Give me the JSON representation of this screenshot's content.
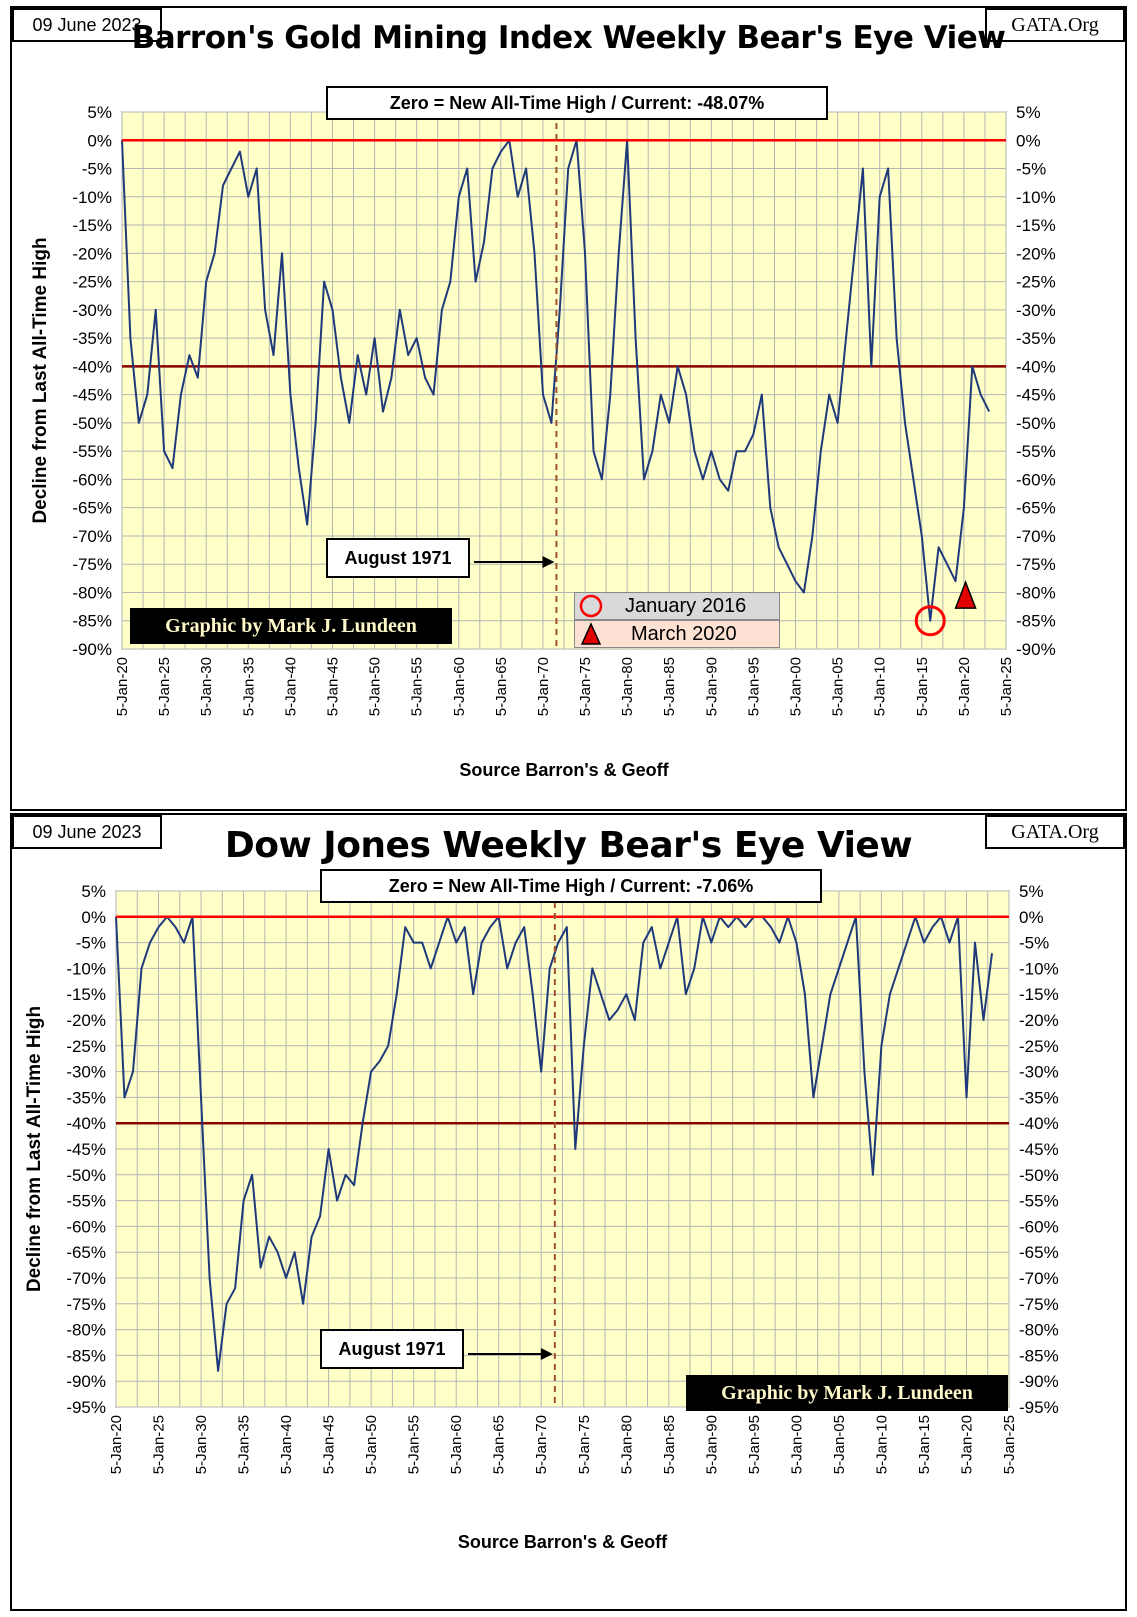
{
  "chart_data": [
    {
      "type": "line",
      "date_label": "09 June 2023",
      "source_label": "GATA.Org",
      "title": "Barron's Gold Mining Index Weekly Bear's Eye View",
      "annotation": "Zero = New All-Time High / Current: -48.07%",
      "ylabel": "Decline from Last All-Time High",
      "xlabel": "Source Barron's & Geoff",
      "credit": "Graphic by Mark J. Lundeen",
      "marker_label": "August 1971",
      "legend": [
        {
          "symbol": "circle",
          "label": "January 2016"
        },
        {
          "symbol": "triangle",
          "label": "March 2020"
        }
      ],
      "ylim": [
        -90,
        5
      ],
      "yticks": [
        "5%",
        "0%",
        "-5%",
        "-10%",
        "-15%",
        "-20%",
        "-25%",
        "-30%",
        "-35%",
        "-40%",
        "-45%",
        "-50%",
        "-55%",
        "-60%",
        "-65%",
        "-70%",
        "-75%",
        "-80%",
        "-85%",
        "-90%"
      ],
      "xlim": [
        1920,
        2025
      ],
      "xticks": [
        "5-Jan-20",
        "5-Jan-25",
        "5-Jan-30",
        "5-Jan-35",
        "5-Jan-40",
        "5-Jan-45",
        "5-Jan-50",
        "5-Jan-55",
        "5-Jan-60",
        "5-Jan-65",
        "5-Jan-70",
        "5-Jan-75",
        "5-Jan-80",
        "5-Jan-85",
        "5-Jan-90",
        "5-Jan-95",
        "5-Jan-00",
        "5-Jan-05",
        "5-Jan-10",
        "5-Jan-15",
        "5-Jan-20",
        "5-Jan-25"
      ],
      "reference_lines": [
        0,
        -40
      ],
      "vertical_marker_x": 1971.6,
      "circle_marker": {
        "x": 2016.0,
        "y": -85
      },
      "triangle_marker": {
        "x": 2020.2,
        "y": -81
      },
      "colors": {
        "plot_bg": "#ffffc8",
        "line": "#1f3a7a",
        "zero_line": "#ff0000",
        "ref_line": "#8b0000",
        "marker_line": "#a0522d",
        "legend_bg1": "#d9d9d9",
        "legend_bg2": "#fde2d4"
      },
      "x": [
        1920,
        1921,
        1922,
        1923,
        1924,
        1925,
        1926,
        1927,
        1928,
        1929,
        1930,
        1931,
        1932,
        1933,
        1934,
        1935,
        1936,
        1937,
        1938,
        1939,
        1940,
        1941,
        1942,
        1943,
        1944,
        1945,
        1946,
        1947,
        1948,
        1949,
        1950,
        1951,
        1952,
        1953,
        1954,
        1955,
        1956,
        1957,
        1958,
        1959,
        1960,
        1961,
        1962,
        1963,
        1964,
        1965,
        1966,
        1967,
        1968,
        1969,
        1970,
        1971,
        1972,
        1973,
        1974,
        1975,
        1976,
        1977,
        1978,
        1979,
        1980,
        1981,
        1982,
        1983,
        1984,
        1985,
        1986,
        1987,
        1988,
        1989,
        1990,
        1991,
        1992,
        1993,
        1994,
        1995,
        1996,
        1997,
        1998,
        1999,
        2000,
        2001,
        2002,
        2003,
        2004,
        2005,
        2006,
        2007,
        2008,
        2009,
        2010,
        2011,
        2012,
        2013,
        2014,
        2015,
        2016,
        2017,
        2018,
        2019,
        2020,
        2021,
        2022,
        2023
      ],
      "values": [
        0,
        -35,
        -50,
        -45,
        -30,
        -55,
        -58,
        -45,
        -38,
        -42,
        -25,
        -20,
        -8,
        -5,
        -2,
        -10,
        -5,
        -30,
        -38,
        -20,
        -45,
        -58,
        -68,
        -50,
        -25,
        -30,
        -42,
        -50,
        -38,
        -45,
        -35,
        -48,
        -42,
        -30,
        -38,
        -35,
        -42,
        -45,
        -30,
        -25,
        -10,
        -5,
        -25,
        -18,
        -5,
        -2,
        0,
        -10,
        -5,
        -20,
        -45,
        -50,
        -30,
        -5,
        0,
        -20,
        -55,
        -60,
        -45,
        -20,
        0,
        -35,
        -60,
        -55,
        -45,
        -50,
        -40,
        -45,
        -55,
        -60,
        -55,
        -60,
        -62,
        -55,
        -55,
        -52,
        -45,
        -65,
        -72,
        -75,
        -78,
        -80,
        -70,
        -55,
        -45,
        -50,
        -35,
        -20,
        -5,
        -40,
        -10,
        -5,
        -35,
        -50,
        -60,
        -70,
        -85,
        -72,
        -75,
        -78,
        -65,
        -40,
        -45,
        -48
      ]
    },
    {
      "type": "line",
      "date_label": "09 June 2023",
      "source_label": "GATA.Org",
      "title": "Dow Jones Weekly Bear's Eye View",
      "annotation": "Zero = New All-Time High / Current: -7.06%",
      "ylabel": "Decline from Last All-Time High",
      "xlabel": "Source Barron's & Geoff",
      "credit": "Graphic by Mark J. Lundeen",
      "marker_label": "August 1971",
      "ylim": [
        -95,
        5
      ],
      "yticks": [
        "5%",
        "0%",
        "-5%",
        "-10%",
        "-15%",
        "-20%",
        "-25%",
        "-30%",
        "-35%",
        "-40%",
        "-45%",
        "-50%",
        "-55%",
        "-60%",
        "-65%",
        "-70%",
        "-75%",
        "-80%",
        "-85%",
        "-90%",
        "-95%"
      ],
      "xlim": [
        1920,
        2025
      ],
      "xticks": [
        "5-Jan-20",
        "5-Jan-25",
        "5-Jan-30",
        "5-Jan-35",
        "5-Jan-40",
        "5-Jan-45",
        "5-Jan-50",
        "5-Jan-55",
        "5-Jan-60",
        "5-Jan-65",
        "5-Jan-70",
        "5-Jan-75",
        "5-Jan-80",
        "5-Jan-85",
        "5-Jan-90",
        "5-Jan-95",
        "5-Jan-00",
        "5-Jan-05",
        "5-Jan-10",
        "5-Jan-15",
        "5-Jan-20",
        "5-Jan-25"
      ],
      "reference_lines": [
        0,
        -40
      ],
      "vertical_marker_x": 1971.6,
      "colors": {
        "plot_bg": "#ffffc8",
        "line": "#1f3a7a",
        "zero_line": "#ff0000",
        "ref_line": "#8b0000",
        "marker_line": "#a0522d"
      },
      "x": [
        1920,
        1921,
        1922,
        1923,
        1924,
        1925,
        1926,
        1927,
        1928,
        1929,
        1930,
        1931,
        1932,
        1933,
        1934,
        1935,
        1936,
        1937,
        1938,
        1939,
        1940,
        1941,
        1942,
        1943,
        1944,
        1945,
        1946,
        1947,
        1948,
        1949,
        1950,
        1951,
        1952,
        1953,
        1954,
        1955,
        1956,
        1957,
        1958,
        1959,
        1960,
        1961,
        1962,
        1963,
        1964,
        1965,
        1966,
        1967,
        1968,
        1969,
        1970,
        1971,
        1972,
        1973,
        1974,
        1975,
        1976,
        1977,
        1978,
        1979,
        1980,
        1981,
        1982,
        1983,
        1984,
        1985,
        1986,
        1987,
        1988,
        1989,
        1990,
        1991,
        1992,
        1993,
        1994,
        1995,
        1996,
        1997,
        1998,
        1999,
        2000,
        2001,
        2002,
        2003,
        2004,
        2005,
        2006,
        2007,
        2008,
        2009,
        2010,
        2011,
        2012,
        2013,
        2014,
        2015,
        2016,
        2017,
        2018,
        2019,
        2020,
        2021,
        2022,
        2023
      ],
      "values": [
        0,
        -35,
        -30,
        -10,
        -5,
        -2,
        0,
        -2,
        -5,
        0,
        -35,
        -70,
        -88,
        -75,
        -72,
        -55,
        -50,
        -68,
        -62,
        -65,
        -70,
        -65,
        -75,
        -62,
        -58,
        -45,
        -55,
        -50,
        -52,
        -40,
        -30,
        -28,
        -25,
        -15,
        -2,
        -5,
        -5,
        -10,
        -5,
        0,
        -5,
        -2,
        -15,
        -5,
        -2,
        0,
        -10,
        -5,
        -2,
        -15,
        -30,
        -10,
        -5,
        -2,
        -45,
        -25,
        -10,
        -15,
        -20,
        -18,
        -15,
        -20,
        -5,
        -2,
        -10,
        -5,
        0,
        -15,
        -10,
        0,
        -5,
        0,
        -2,
        0,
        -2,
        0,
        0,
        -2,
        -5,
        0,
        -5,
        -15,
        -35,
        -25,
        -15,
        -10,
        -5,
        0,
        -30,
        -50,
        -25,
        -15,
        -10,
        -5,
        0,
        -5,
        -2,
        0,
        -5,
        0,
        -35,
        -5,
        -20,
        -7.06
      ]
    }
  ]
}
